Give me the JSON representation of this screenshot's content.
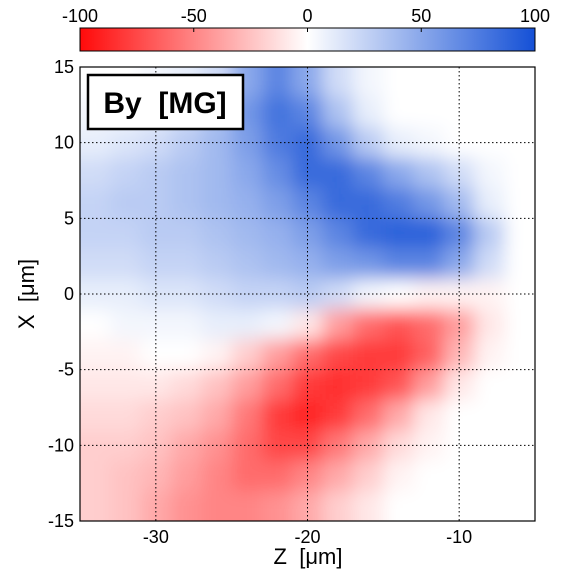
{
  "chart_data": {
    "type": "heatmap",
    "annotation": "By  [MG]",
    "xlabel": "Z  [μm]",
    "ylabel": "X  [μm]",
    "xlim": [
      -35,
      -5
    ],
    "ylim": [
      -15,
      15
    ],
    "xticks": [
      -30,
      -20,
      -10
    ],
    "yticks": [
      -15,
      -10,
      -5,
      0,
      5,
      10,
      15
    ],
    "grid": true,
    "clim": [
      -100,
      100
    ],
    "cticks": [
      -100,
      -50,
      0,
      50,
      100
    ],
    "colormap": [
      "#ff0a0a",
      "#ffffff",
      "#1450d6"
    ],
    "x": [
      -34,
      -32,
      -30,
      -28,
      -26,
      -24,
      -22,
      -20,
      -18,
      -16,
      -14,
      -12,
      -10,
      -8,
      -6
    ],
    "y": [
      14,
      12,
      10,
      8,
      6,
      4,
      2,
      0,
      -2,
      -4,
      -6,
      -8,
      -10,
      -12,
      -14
    ],
    "z": [
      [
        0,
        0,
        5,
        10,
        20,
        50,
        70,
        50,
        20,
        5,
        0,
        0,
        0,
        0,
        0
      ],
      [
        5,
        5,
        10,
        20,
        35,
        60,
        80,
        70,
        35,
        10,
        0,
        0,
        0,
        0,
        0
      ],
      [
        10,
        15,
        20,
        30,
        40,
        55,
        75,
        85,
        60,
        30,
        10,
        5,
        0,
        0,
        0
      ],
      [
        20,
        25,
        30,
        35,
        40,
        50,
        65,
        85,
        85,
        70,
        50,
        35,
        20,
        5,
        0
      ],
      [
        25,
        30,
        30,
        35,
        40,
        45,
        55,
        70,
        85,
        85,
        75,
        60,
        40,
        10,
        0
      ],
      [
        25,
        25,
        30,
        30,
        35,
        40,
        45,
        55,
        70,
        85,
        90,
        90,
        70,
        30,
        0
      ],
      [
        20,
        20,
        25,
        25,
        30,
        35,
        40,
        45,
        55,
        60,
        70,
        70,
        50,
        20,
        0
      ],
      [
        10,
        10,
        15,
        15,
        20,
        25,
        25,
        30,
        20,
        5,
        0,
        -5,
        -5,
        -5,
        0
      ],
      [
        0,
        5,
        5,
        5,
        10,
        10,
        5,
        -10,
        -40,
        -60,
        -70,
        -60,
        -40,
        -10,
        0
      ],
      [
        -5,
        -5,
        0,
        0,
        -5,
        -20,
        -40,
        -60,
        -75,
        -80,
        -80,
        -65,
        -30,
        -5,
        0
      ],
      [
        -10,
        -10,
        -10,
        -15,
        -25,
        -40,
        -60,
        -80,
        -85,
        -80,
        -70,
        -40,
        -10,
        0,
        0
      ],
      [
        -15,
        -15,
        -20,
        -25,
        -35,
        -55,
        -80,
        -90,
        -80,
        -60,
        -35,
        -10,
        0,
        0,
        0
      ],
      [
        -20,
        -20,
        -25,
        -35,
        -45,
        -60,
        -75,
        -75,
        -55,
        -35,
        -15,
        -5,
        0,
        0,
        0
      ],
      [
        -20,
        -25,
        -30,
        -40,
        -50,
        -60,
        -60,
        -50,
        -35,
        -20,
        -5,
        0,
        0,
        0,
        0
      ],
      [
        -20,
        -25,
        -35,
        -45,
        -50,
        -50,
        -45,
        -35,
        -20,
        -10,
        0,
        0,
        0,
        0,
        0
      ]
    ]
  }
}
